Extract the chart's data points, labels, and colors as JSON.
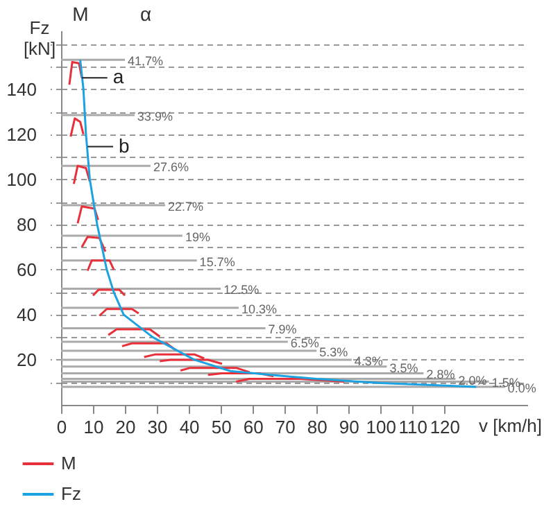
{
  "chart_data": {
    "type": "line",
    "ylabel": "Fz [kN]",
    "xlabel": "v [km/h]",
    "xlim": [
      0,
      146
    ],
    "ylim": [
      0,
      166
    ],
    "xticks": [
      0,
      10,
      20,
      30,
      40,
      50,
      60,
      70,
      80,
      90,
      100,
      110,
      120
    ],
    "yticks": [
      {
        "value": 10,
        "label": null
      },
      20,
      {
        "value": 30,
        "label": null
      },
      40,
      {
        "value": 50,
        "label": null
      },
      60,
      {
        "value": 70,
        "label": null
      },
      80,
      {
        "value": 90,
        "label": null
      },
      100,
      {
        "value": 110,
        "label": null
      },
      120,
      {
        "value": 130,
        "label": null
      },
      140,
      {
        "value": 150,
        "label": null
      },
      {
        "value": 160,
        "label": null
      }
    ],
    "grid": "y",
    "legend": "bottom left",
    "series": [
      {
        "color": "#aaaaaa",
        "x": [
          0,
          20
        ],
        "values": [
          153,
          153
        ]
      },
      {
        "color": "#aaaaaa",
        "x": [
          0,
          23
        ],
        "values": [
          128.5,
          128.5
        ]
      },
      {
        "color": "#aaaaaa",
        "x": [
          0,
          28
        ],
        "values": [
          106,
          106
        ]
      },
      {
        "color": "#aaaaaa",
        "x": [
          0,
          32.6
        ],
        "values": [
          88.5,
          88.5
        ]
      },
      {
        "color": "#aaaaaa",
        "x": [
          0,
          38
        ],
        "values": [
          75,
          75
        ]
      },
      {
        "color": "#aaaaaa",
        "x": [
          0,
          42.5
        ],
        "values": [
          64,
          64
        ]
      },
      {
        "color": "#aaaaaa",
        "x": [
          0,
          50
        ],
        "values": [
          51.5,
          51.5
        ]
      },
      {
        "color": "#aaaaaa",
        "x": [
          0,
          55.6
        ],
        "values": [
          43,
          43
        ]
      },
      {
        "color": "#aaaaaa",
        "x": [
          0,
          64
        ],
        "values": [
          34,
          34
        ]
      },
      {
        "color": "#aaaaaa",
        "x": [
          0,
          71
        ],
        "values": [
          28,
          28
        ]
      },
      {
        "color": "#aaaaaa",
        "x": [
          0,
          80
        ],
        "values": [
          24,
          24
        ]
      },
      {
        "color": "#aaaaaa",
        "x": [
          0,
          91
        ],
        "values": [
          20,
          20
        ]
      },
      {
        "color": "#aaaaaa",
        "x": [
          0,
          102
        ],
        "values": [
          17,
          17
        ]
      },
      {
        "color": "#aaaaaa",
        "x": [
          0,
          113.5
        ],
        "values": [
          14,
          14
        ]
      },
      {
        "color": "#aaaaaa",
        "x": [
          0,
          123.5
        ],
        "values": [
          11.5,
          11.5
        ]
      },
      {
        "color": "#aaaaaa",
        "x": [
          0,
          134
        ],
        "values": [
          10.3,
          10.3
        ]
      },
      {
        "color": "#aaaaaa",
        "x": [
          0,
          139
        ],
        "values": [
          8,
          8
        ]
      },
      {
        "name": "M",
        "color": "#e8303a",
        "x": [
          2.6,
          3.5,
          5.6,
          6.5
        ],
        "values": [
          142,
          152,
          151.5,
          145
        ]
      },
      {
        "color": "#e8303a",
        "x": [
          3,
          4.3,
          6,
          7
        ],
        "values": [
          119,
          127,
          125.5,
          120
        ]
      },
      {
        "color": "#e8303a",
        "x": [
          4,
          5.2,
          7.8,
          9
        ],
        "values": [
          98,
          106,
          105,
          99
        ]
      },
      {
        "color": "#e8303a",
        "x": [
          5.2,
          6.5,
          10.5,
          11.6
        ],
        "values": [
          80.5,
          88,
          87,
          82
        ]
      },
      {
        "color": "#e8303a",
        "x": [
          6.5,
          8.3,
          12,
          13.9
        ],
        "values": [
          70,
          74.5,
          74,
          68
        ]
      },
      {
        "color": "#e8303a",
        "x": [
          8.3,
          9.6,
          15.2,
          16.5
        ],
        "values": [
          59.5,
          64,
          64,
          60
        ]
      },
      {
        "color": "#e8303a",
        "x": [
          10,
          11.7,
          18.3,
          20
        ],
        "values": [
          48.5,
          51,
          51,
          48.5
        ]
      },
      {
        "color": "#e8303a",
        "x": [
          12,
          14.3,
          22.2,
          24.3
        ],
        "values": [
          39.5,
          42.5,
          42.5,
          40.6
        ]
      },
      {
        "color": "#e8303a",
        "x": [
          14.8,
          17.4,
          27.8,
          30.9
        ],
        "values": [
          31,
          33.5,
          33.5,
          30.3
        ]
      },
      {
        "color": "#e8303a",
        "x": [
          19.1,
          22.2,
          33,
          36
        ],
        "values": [
          26,
          27.3,
          27.3,
          24.2
        ]
      },
      {
        "color": "#e8303a",
        "x": [
          26,
          29.6,
          41.7,
          44.8
        ],
        "values": [
          21.2,
          22.4,
          22.4,
          20.6
        ]
      },
      {
        "color": "#e8303a",
        "x": [
          30.9,
          34.3,
          46,
          50.4
        ],
        "values": [
          19.4,
          20,
          20,
          18.2
        ]
      },
      {
        "color": "#e8303a",
        "x": [
          37.4,
          40.4,
          54.8,
          59
        ],
        "values": [
          15.2,
          16.4,
          16.4,
          14.5
        ]
      },
      {
        "color": "#e8303a",
        "x": [
          46,
          50.4,
          62,
          66.5
        ],
        "values": [
          13.3,
          14,
          14,
          12.7
        ]
      },
      {
        "color": "#e8303a",
        "x": [
          54.8,
          59,
          75,
          88.7
        ],
        "values": [
          10.3,
          11.5,
          11.5,
          10.3
        ]
      },
      {
        "name": "Fz",
        "color": "#1aa3e0",
        "x": [
          6,
          7,
          7.8,
          9,
          11.3,
          14.3,
          16.5,
          19.6,
          28.7,
          41.7,
          53,
          68,
          80,
          100,
          130
        ],
        "values": [
          153,
          140,
          120,
          100,
          80,
          60,
          50,
          40,
          30,
          20,
          15,
          13,
          11.5,
          9.7,
          8
        ]
      }
    ],
    "annotations": [
      "M",
      "α",
      {
        "text": "a",
        "x": 6.5,
        "y": 145
      },
      {
        "text": "b",
        "x": 8.3,
        "y": 114.5
      },
      {
        "text": "41,7%",
        "x": 20,
        "y": 153
      },
      {
        "text": "33.9%",
        "x": 23,
        "y": 128.5
      },
      {
        "text": "27.6%",
        "x": 28,
        "y": 106
      },
      {
        "text": "22.7%",
        "x": 32.6,
        "y": 88.5
      },
      {
        "text": "19%",
        "x": 38,
        "y": 75
      },
      {
        "text": "15.7%",
        "x": 42.5,
        "y": 64
      },
      {
        "text": "12.5%",
        "x": 50,
        "y": 51.5
      },
      {
        "text": "10.3%",
        "x": 55.6,
        "y": 43
      },
      {
        "text": "7.9%",
        "x": 64,
        "y": 34
      },
      {
        "text": "6.5%",
        "x": 71,
        "y": 28
      },
      {
        "text": "5.3%",
        "x": 80,
        "y": 24
      },
      {
        "text": "4.3%",
        "x": 91,
        "y": 20
      },
      {
        "text": "3.5%",
        "x": 102,
        "y": 17
      },
      {
        "text": "2.8%",
        "x": 113.5,
        "y": 14
      },
      {
        "text": "2.0%",
        "x": 123.5,
        "y": 11.5
      },
      {
        "text": "1.5%",
        "x": 134,
        "y": 10.3
      },
      {
        "text": "0.0%",
        "x": 139,
        "y": 8
      }
    ]
  }
}
